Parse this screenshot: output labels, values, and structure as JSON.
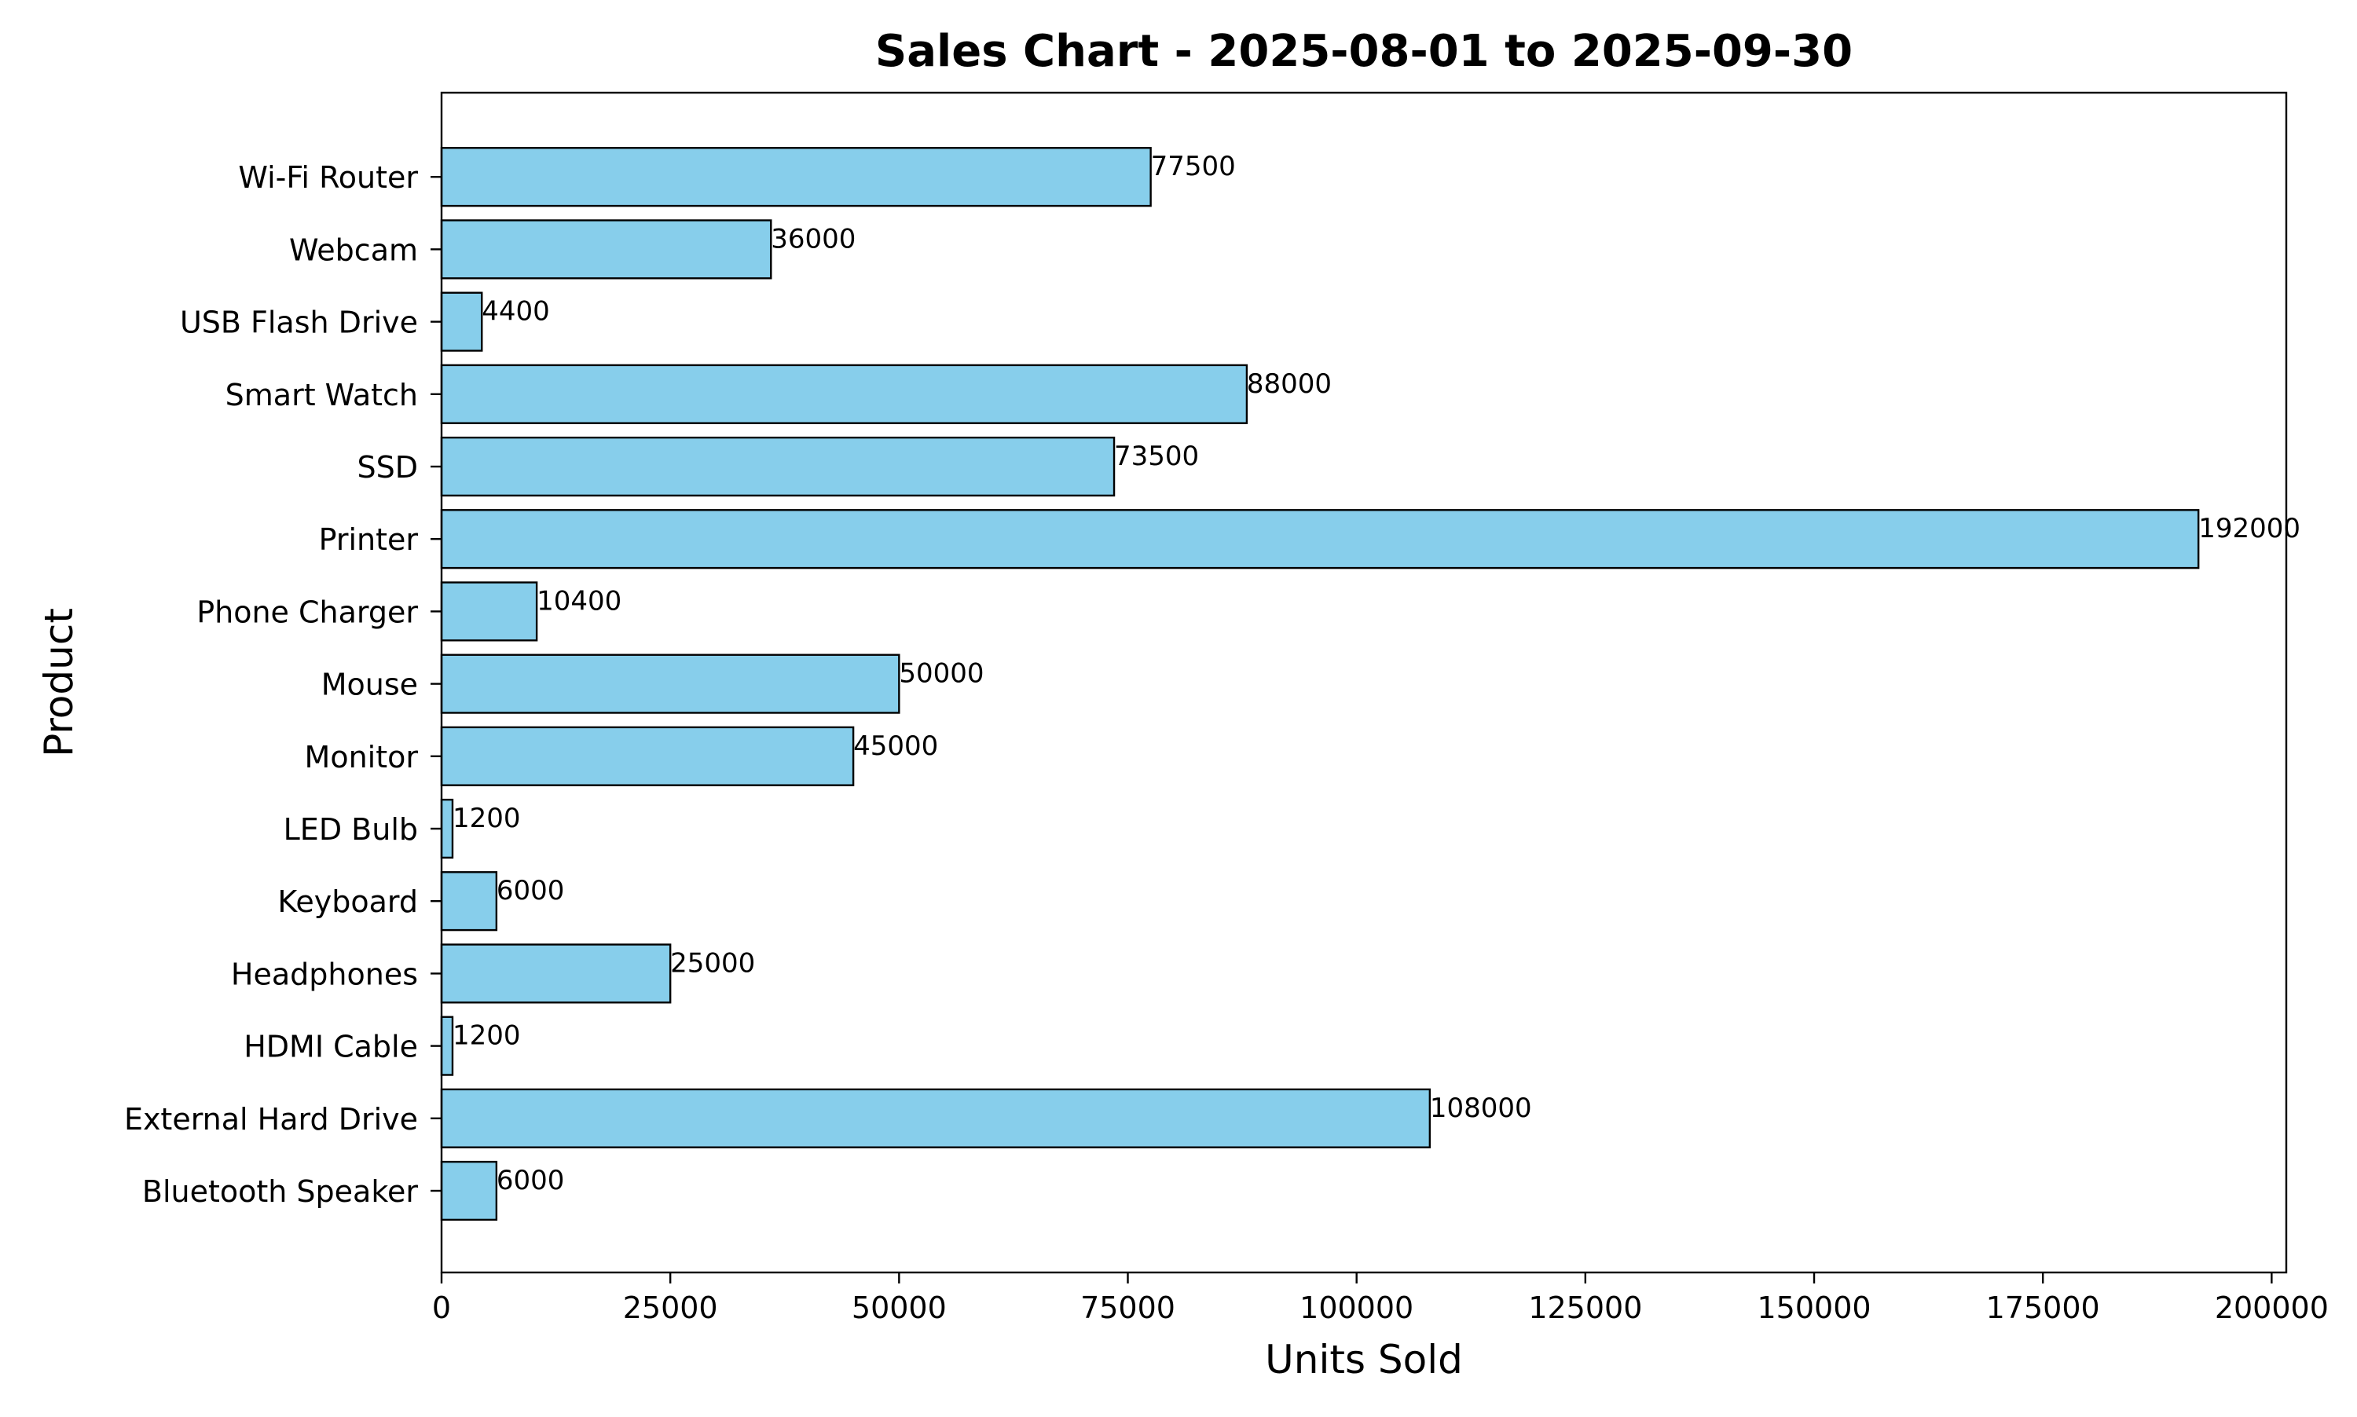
{
  "chart_data": {
    "type": "bar",
    "orientation": "horizontal",
    "title": "Sales Chart - 2025-08-01 to 2025-09-30",
    "xlabel": "Units Sold",
    "ylabel": "Product",
    "categories": [
      "Bluetooth Speaker",
      "External Hard Drive",
      "HDMI Cable",
      "Headphones",
      "Keyboard",
      "LED Bulb",
      "Monitor",
      "Mouse",
      "Phone Charger",
      "Printer",
      "SSD",
      "Smart Watch",
      "USB Flash Drive",
      "Webcam",
      "Wi-Fi Router"
    ],
    "values": [
      6000,
      108000,
      1200,
      25000,
      6000,
      1200,
      45000,
      50000,
      10400,
      192000,
      73500,
      88000,
      4400,
      36000,
      77500
    ],
    "xlim": [
      0,
      201600
    ],
    "xticks": [
      0,
      25000,
      50000,
      75000,
      100000,
      125000,
      150000,
      175000,
      200000
    ],
    "grid": false,
    "bar_color": "#87CEEB",
    "edge_color": "#000000"
  }
}
